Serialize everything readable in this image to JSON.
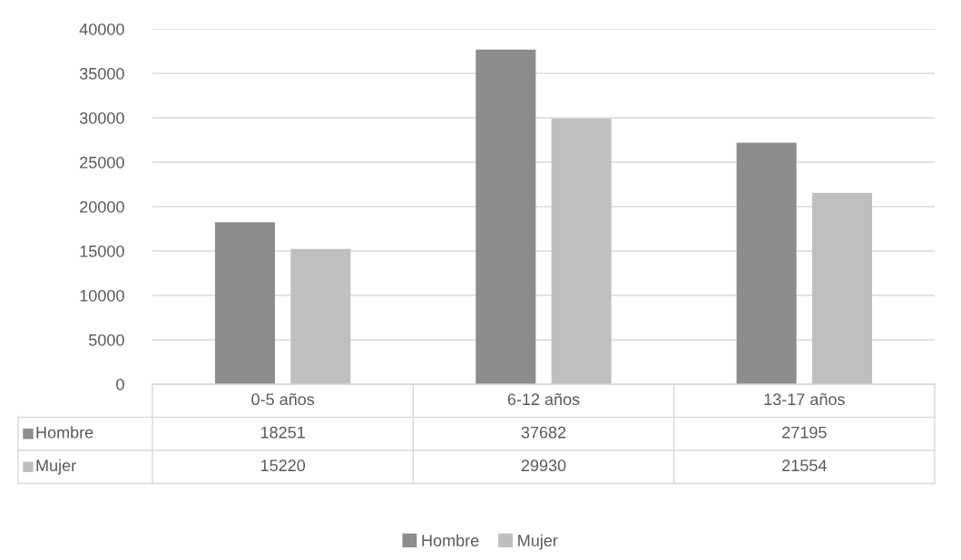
{
  "chart_data": {
    "type": "bar",
    "categories": [
      "0-5 años",
      "6-12 años",
      "13-17 años"
    ],
    "series": [
      {
        "name": "Hombre",
        "color": "#8c8c8c",
        "values": [
          18251,
          37682,
          27195
        ]
      },
      {
        "name": "Mujer",
        "color": "#bfbfbf",
        "values": [
          15220,
          29930,
          21554
        ]
      }
    ],
    "ylim": [
      0,
      40000
    ],
    "yticks": [
      0,
      5000,
      10000,
      15000,
      20000,
      25000,
      30000,
      35000,
      40000
    ],
    "grid": "y",
    "legend": "bottom",
    "data_labels": true
  }
}
